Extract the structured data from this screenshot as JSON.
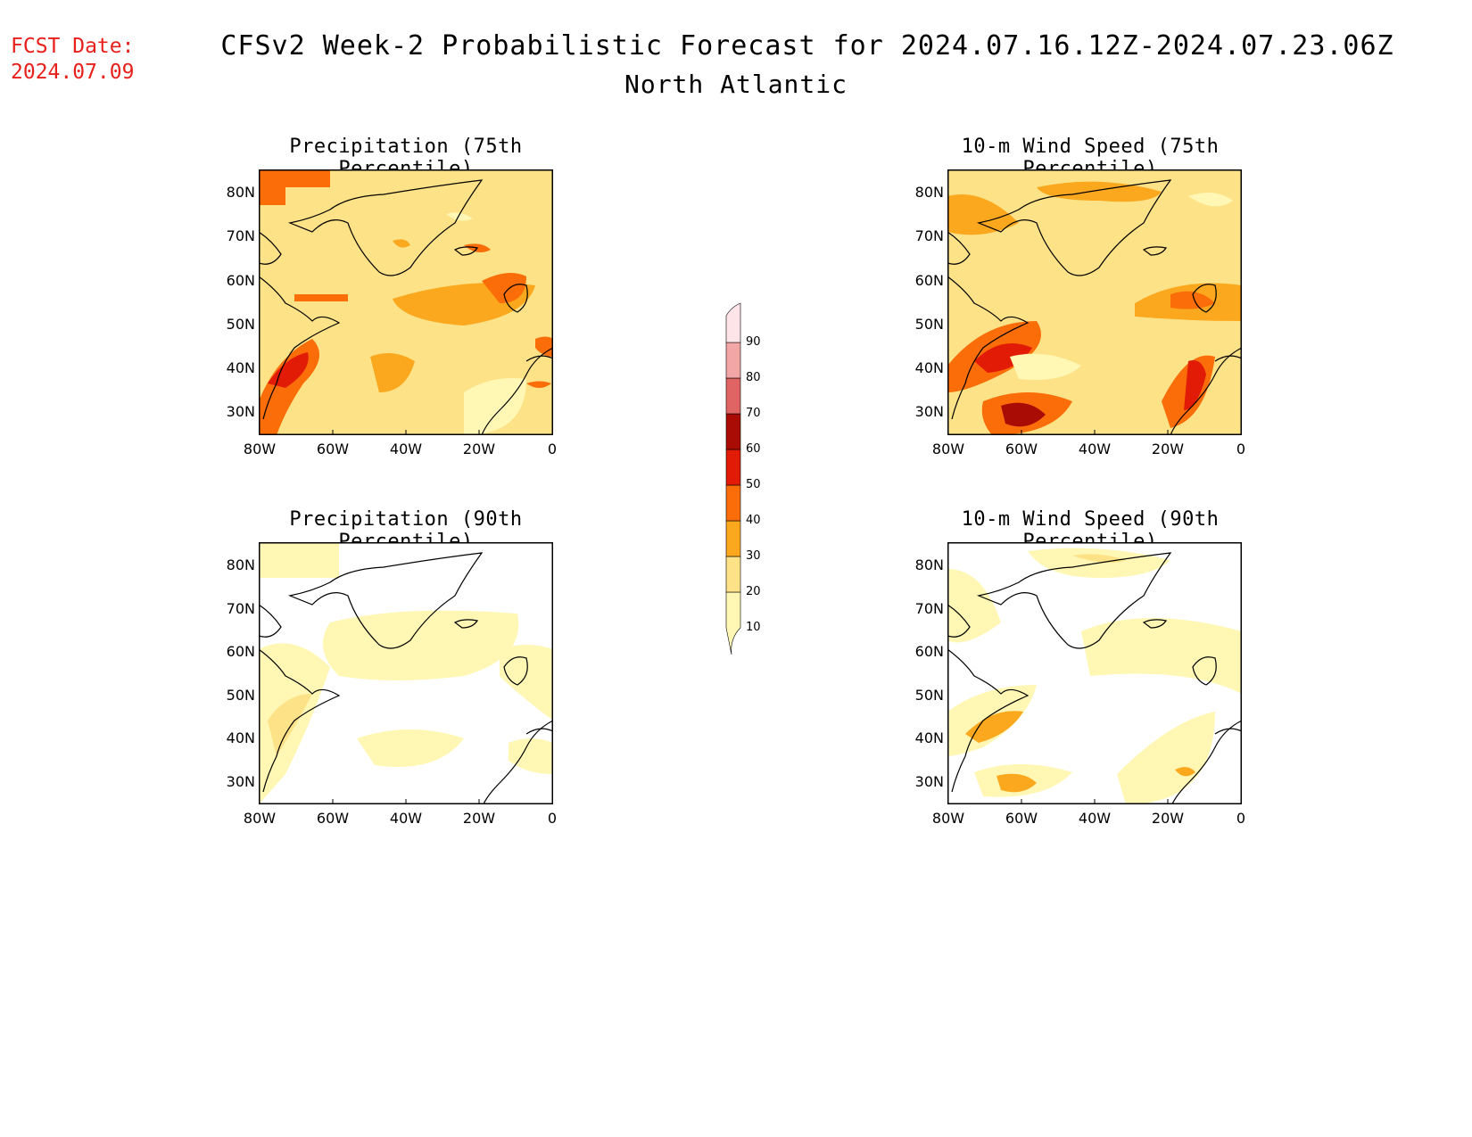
{
  "header": {
    "fcst_label": "FCST Date:",
    "fcst_date": "2024.07.09",
    "title": "CFSv2 Week-2 Probabilistic Forecast for 2024.07.16.12Z-2024.07.23.06Z",
    "region": "North Atlantic"
  },
  "panels": [
    {
      "title": "Precipitation (75th Percentile)"
    },
    {
      "title": "10-m Wind Speed (75th Percentile)"
    },
    {
      "title": "Precipitation (90th Percentile)"
    },
    {
      "title": "10-m Wind Speed (90th Percentile)"
    }
  ],
  "axes": {
    "lat_labels": [
      "80N",
      "70N",
      "60N",
      "50N",
      "40N",
      "30N"
    ],
    "lon_labels": [
      "80W",
      "60W",
      "40W",
      "20W",
      "0"
    ]
  },
  "colorbar": {
    "levels": [
      "10",
      "20",
      "30",
      "40",
      "50",
      "60",
      "70",
      "80",
      "90"
    ],
    "colors": [
      "#fff7b3",
      "#fde287",
      "#fca81e",
      "#fb6d09",
      "#e11b06",
      "#a90c05",
      "#e06463",
      "#f2a6a6",
      "#fde4e8"
    ]
  }
}
